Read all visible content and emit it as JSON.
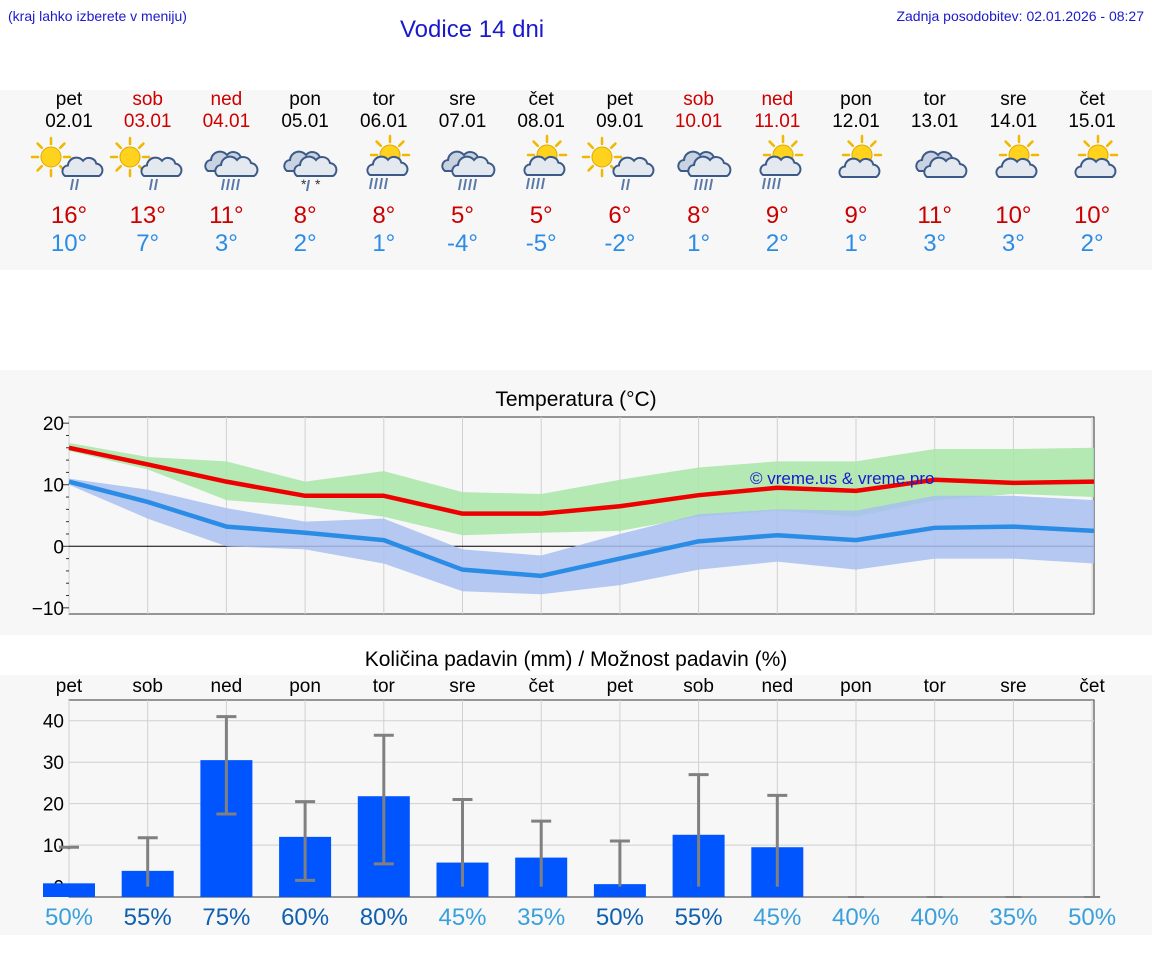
{
  "header": {
    "left_note": "(kraj lahko izberete v meniju)",
    "title": "Vodice 14 dni",
    "updated": "Zadnja posodobitev: 02.01.2026 - 08:27"
  },
  "days": [
    {
      "name": "pet",
      "date": "02.01",
      "weekend": false,
      "icon": "partly-sunny-rain-icon",
      "tmax": "16°",
      "tmin": "10°"
    },
    {
      "name": "sob",
      "date": "03.01",
      "weekend": true,
      "icon": "partly-sunny-rain-icon",
      "tmax": "13°",
      "tmin": "7°"
    },
    {
      "name": "ned",
      "date": "04.01",
      "weekend": true,
      "icon": "cloudy-rain-icon",
      "tmax": "11°",
      "tmin": "3°"
    },
    {
      "name": "pon",
      "date": "05.01",
      "weekend": false,
      "icon": "cloudy-sleet-icon",
      "tmax": "8°",
      "tmin": "2°"
    },
    {
      "name": "tor",
      "date": "06.01",
      "weekend": false,
      "icon": "sun-cloud-heavy-rain-icon",
      "tmax": "8°",
      "tmin": "1°"
    },
    {
      "name": "sre",
      "date": "07.01",
      "weekend": false,
      "icon": "cloudy-rain-icon",
      "tmax": "5°",
      "tmin": "-4°"
    },
    {
      "name": "čet",
      "date": "08.01",
      "weekend": false,
      "icon": "sun-cloud-heavy-rain-icon",
      "tmax": "5°",
      "tmin": "-5°"
    },
    {
      "name": "pet",
      "date": "09.01",
      "weekend": false,
      "icon": "partly-sunny-rain-icon",
      "tmax": "6°",
      "tmin": "-2°"
    },
    {
      "name": "sob",
      "date": "10.01",
      "weekend": true,
      "icon": "cloudy-rain-icon",
      "tmax": "8°",
      "tmin": "1°"
    },
    {
      "name": "ned",
      "date": "11.01",
      "weekend": true,
      "icon": "sun-cloud-heavy-rain-icon",
      "tmax": "9°",
      "tmin": "2°"
    },
    {
      "name": "pon",
      "date": "12.01",
      "weekend": false,
      "icon": "partly-cloudy-icon",
      "tmax": "9°",
      "tmin": "1°"
    },
    {
      "name": "tor",
      "date": "13.01",
      "weekend": false,
      "icon": "cloudy-icon",
      "tmax": "11°",
      "tmin": "3°"
    },
    {
      "name": "sre",
      "date": "14.01",
      "weekend": false,
      "icon": "partly-cloudy-icon",
      "tmax": "10°",
      "tmin": "3°"
    },
    {
      "name": "čet",
      "date": "15.01",
      "weekend": false,
      "icon": "partly-cloudy-icon",
      "tmax": "10°",
      "tmin": "2°"
    }
  ],
  "colors": {
    "max": "#ee0000",
    "min": "#2b8ce6",
    "max_band": "#a8e6a8",
    "min_band": "#a8c0f0",
    "bar": "#0055ff",
    "err": "#808080",
    "pct_dark": "#1060b0",
    "pct_light": "#3aa0dd"
  },
  "chart_data": [
    {
      "type": "line",
      "title": "Temperatura (°C)",
      "watermark": "© vreme.us & vreme.pro",
      "ylim": [
        -11,
        21
      ],
      "yticks": [
        "20",
        "10",
        "0",
        "−10"
      ],
      "ytick_values": [
        20,
        10,
        0,
        -10
      ],
      "x": [
        0,
        1,
        2,
        3,
        4,
        5,
        6,
        7,
        8,
        9,
        10,
        11,
        12,
        13
      ],
      "series": [
        {
          "name": "max",
          "values": [
            16,
            13.3,
            10.5,
            8.2,
            8.2,
            5.3,
            5.3,
            6.5,
            8.3,
            9.5,
            9.0,
            10.8,
            10.3,
            10.5
          ]
        },
        {
          "name": "min",
          "values": [
            10.5,
            7.2,
            3.2,
            2.2,
            1.0,
            -3.8,
            -4.8,
            -2.0,
            0.8,
            1.8,
            1.0,
            3.0,
            3.2,
            2.5
          ]
        },
        {
          "name": "max_band_hi",
          "values": [
            16.8,
            14.5,
            13.8,
            10.5,
            12.2,
            8.8,
            8.5,
            10.8,
            12.8,
            13.8,
            13.8,
            15.8,
            15.8,
            16.0
          ]
        },
        {
          "name": "max_band_lo",
          "values": [
            15.5,
            12.5,
            7.5,
            6.5,
            4.8,
            1.8,
            2.2,
            2.5,
            4.8,
            5.8,
            4.8,
            7.5,
            8.5,
            8.0
          ]
        },
        {
          "name": "min_band_hi",
          "values": [
            11.0,
            9.2,
            6.2,
            4.0,
            4.5,
            -0.5,
            -1.5,
            2.0,
            5.2,
            6.0,
            5.8,
            8.2,
            8.2,
            7.5
          ]
        },
        {
          "name": "min_band_lo",
          "values": [
            10.0,
            4.5,
            0.0,
            -0.5,
            -2.8,
            -7.3,
            -7.8,
            -6.3,
            -3.8,
            -2.5,
            -3.8,
            -2.0,
            -2.0,
            -2.8
          ]
        }
      ]
    },
    {
      "type": "bar",
      "title": "Količina padavin (mm) / Možnost padavin (%)",
      "categories": [
        "pet",
        "sob",
        "ned",
        "pon",
        "tor",
        "sre",
        "čet",
        "pet",
        "sob",
        "ned",
        "pon",
        "tor",
        "sre",
        "čet"
      ],
      "ylim": [
        -2.5,
        45
      ],
      "yticks": [
        "40",
        "30",
        "20",
        "10",
        "0"
      ],
      "ytick_values": [
        40,
        30,
        20,
        10,
        0
      ],
      "values": [
        0.8,
        3.8,
        30.5,
        12.0,
        21.8,
        5.8,
        7.0,
        0.6,
        12.5,
        9.5,
        0,
        0,
        0,
        0
      ],
      "err_low": [
        null,
        0,
        17.5,
        1.5,
        5.5,
        0,
        0,
        0,
        0,
        0,
        0,
        0,
        0,
        0
      ],
      "err_high": [
        9.5,
        11.8,
        41,
        20.5,
        36.5,
        21,
        15.8,
        11,
        27,
        22,
        0,
        0,
        0,
        0
      ],
      "probability": [
        "50%",
        "55%",
        "75%",
        "60%",
        "80%",
        "45%",
        "35%",
        "50%",
        "55%",
        "45%",
        "40%",
        "40%",
        "35%",
        "50%"
      ]
    }
  ]
}
